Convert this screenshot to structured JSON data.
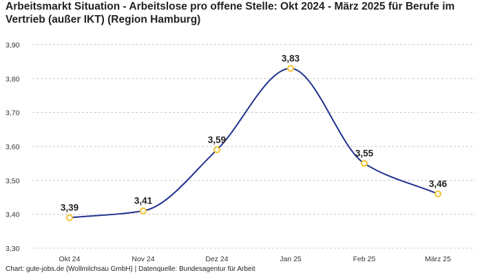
{
  "chart_data": {
    "type": "line",
    "title": "Arbeitsmarkt Situation - Arbeitslose pro offene Stelle: Okt 2024 - März 2025 für Berufe im Vertrieb (außer IKT) (Region Hamburg)",
    "categories": [
      "Okt 24",
      "Nov 24",
      "Dez 24",
      "Jan 25",
      "Feb 25",
      "März 25"
    ],
    "values": [
      3.39,
      3.41,
      3.59,
      3.83,
      3.55,
      3.46
    ],
    "value_labels": [
      "3,39",
      "3,41",
      "3,59",
      "3,83",
      "3,55",
      "3,46"
    ],
    "y_ticks": [
      3.3,
      3.4,
      3.5,
      3.6,
      3.7,
      3.8,
      3.9
    ],
    "y_tick_labels": [
      "3,30",
      "3,40",
      "3,50",
      "3,60",
      "3,70",
      "3,80",
      "3,90"
    ],
    "ylim": [
      3.3,
      3.9
    ],
    "xlabel": "",
    "ylabel": "",
    "grid": "horizontal-dashed",
    "line_color": "#1f2f8c",
    "marker_color": "#f2c230",
    "footer": "Chart: gute-jobs.de (Wollmilchsau GmbH) | Datenquelle: Bundesagentur für Arbeit"
  }
}
